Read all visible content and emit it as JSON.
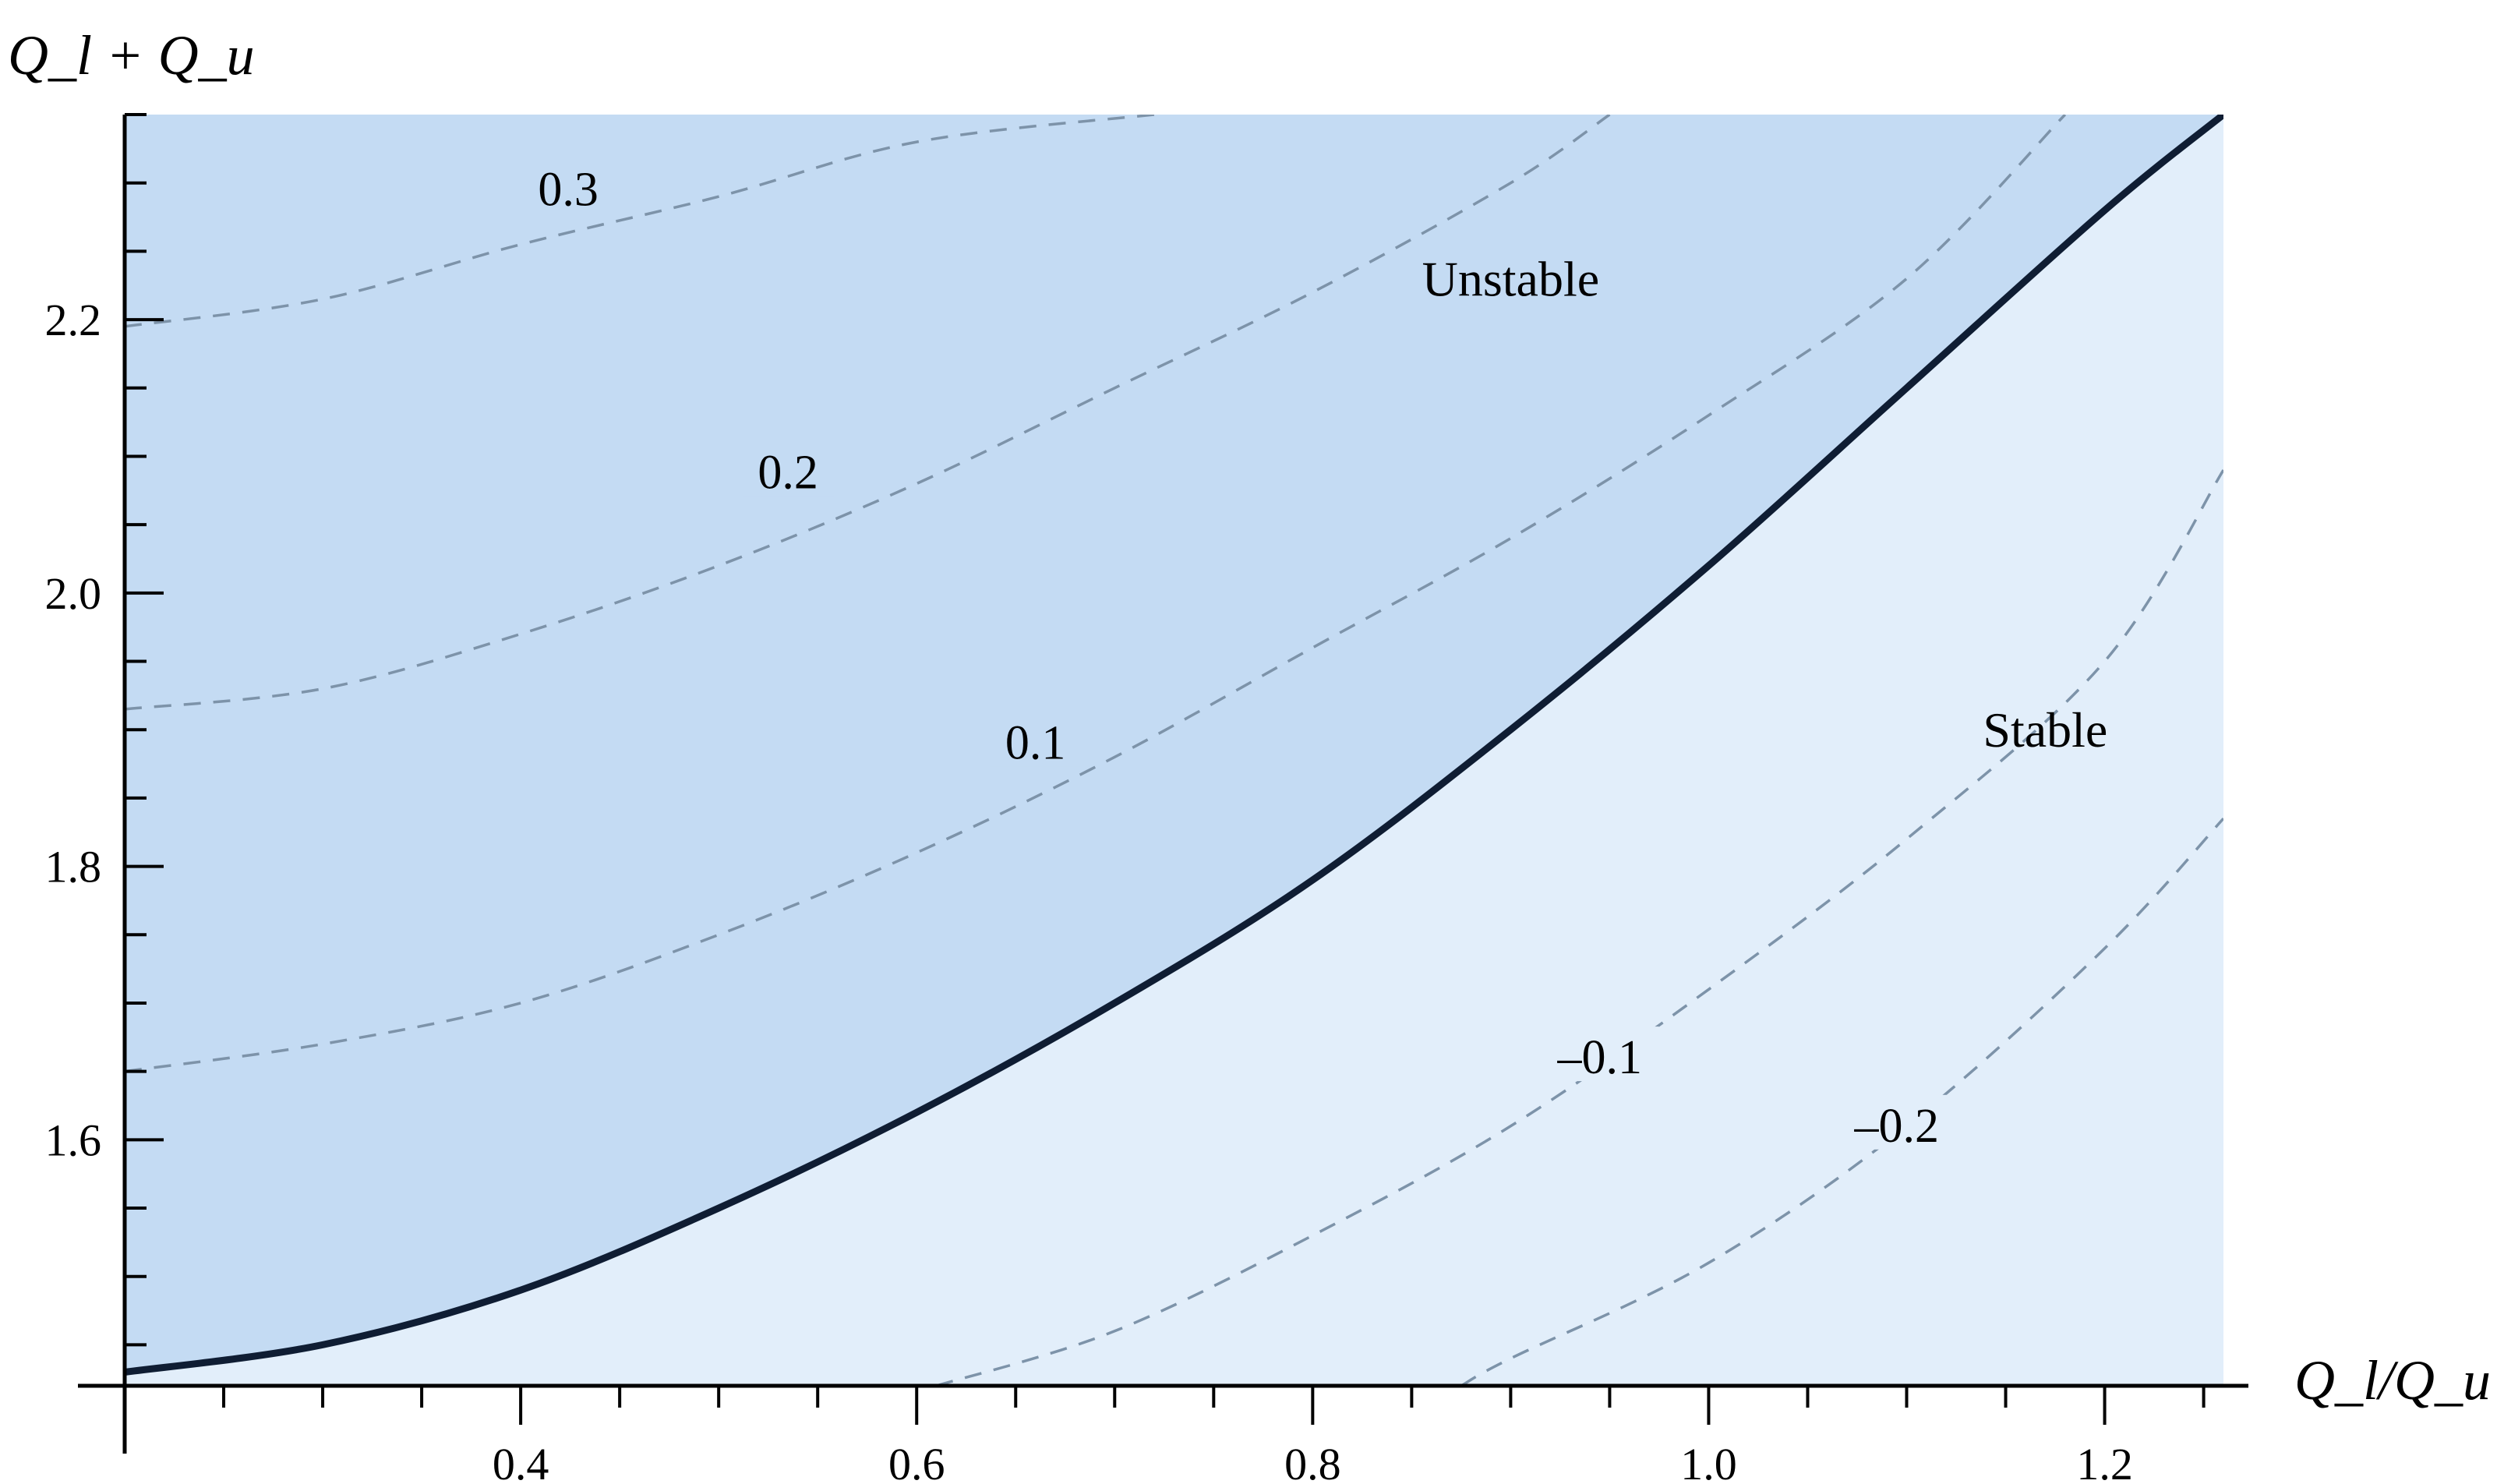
{
  "chart_data": {
    "type": "line",
    "title": "",
    "xlabel": "Q_l/Q_u",
    "ylabel": "Q_l + Q_u",
    "xlim": [
      0.2,
      1.26
    ],
    "ylim": [
      1.42,
      2.35
    ],
    "x_ticks": [
      {
        "value": 0.4,
        "label": "0.4"
      },
      {
        "value": 0.6,
        "label": "0.6"
      },
      {
        "value": 0.8,
        "label": "0.8"
      },
      {
        "value": 1.0,
        "label": "1.0"
      },
      {
        "value": 1.2,
        "label": "1.2"
      }
    ],
    "y_ticks": [
      {
        "value": 1.6,
        "label": "1.6"
      },
      {
        "value": 1.8,
        "label": "1.8"
      },
      {
        "value": 2.0,
        "label": "2.0"
      },
      {
        "value": 2.2,
        "label": "2.2"
      }
    ],
    "grid": false,
    "colors": {
      "unstable_fill": "#c4dbf3",
      "stable_fill": "#e2eefa",
      "boundary": "#0f1d33",
      "contour": "#7d93a9"
    },
    "boundary": {
      "name": "",
      "x": [
        0.2,
        0.3,
        0.4,
        0.5,
        0.6,
        0.7,
        0.8,
        0.9,
        1.0,
        1.1,
        1.2,
        1.26
      ],
      "y": [
        1.43,
        1.45,
        1.49,
        1.55,
        1.62,
        1.7,
        1.79,
        1.9,
        2.02,
        2.15,
        2.28,
        2.35
      ]
    },
    "contours": [
      {
        "label": "0.3",
        "x": [
          0.2,
          0.3,
          0.4,
          0.5,
          0.6,
          0.72
        ],
        "y": [
          2.195,
          2.215,
          2.255,
          2.29,
          2.33,
          2.35
        ],
        "label_x": 0.424,
        "label_y": 2.295
      },
      {
        "label": "0.2",
        "x": [
          0.2,
          0.3,
          0.4,
          0.5,
          0.6,
          0.7,
          0.8,
          0.9,
          0.95
        ],
        "y": [
          1.915,
          1.93,
          1.97,
          2.02,
          2.08,
          2.15,
          2.22,
          2.3,
          2.35
        ],
        "label_x": 0.535,
        "label_y": 2.088
      },
      {
        "label": "0.1",
        "x": [
          0.2,
          0.3,
          0.4,
          0.5,
          0.6,
          0.7,
          0.8,
          0.9,
          1.0,
          1.1,
          1.18
        ],
        "y": [
          1.65,
          1.67,
          1.7,
          1.75,
          1.81,
          1.88,
          1.96,
          2.04,
          2.13,
          2.23,
          2.35
        ],
        "label_x": 0.66,
        "label_y": 1.89
      },
      {
        "label": "–0.1",
        "x": [
          0.61,
          0.7,
          0.8,
          0.9,
          1.0,
          1.1,
          1.2,
          1.26
        ],
        "y": [
          1.42,
          1.46,
          1.53,
          1.61,
          1.71,
          1.82,
          1.95,
          2.09
        ],
        "label_x": 0.945,
        "label_y": 1.66
      },
      {
        "label": "–0.2",
        "x": [
          0.875,
          0.9,
          1.0,
          1.1,
          1.2,
          1.26
        ],
        "y": [
          1.42,
          1.44,
          1.51,
          1.61,
          1.74,
          1.835
        ],
        "label_x": 1.095,
        "label_y": 1.61
      }
    ],
    "regions": [
      {
        "label": "Unstable",
        "x": 0.9,
        "y": 2.23
      },
      {
        "label": "Stable",
        "x": 1.17,
        "y": 1.9
      }
    ]
  }
}
